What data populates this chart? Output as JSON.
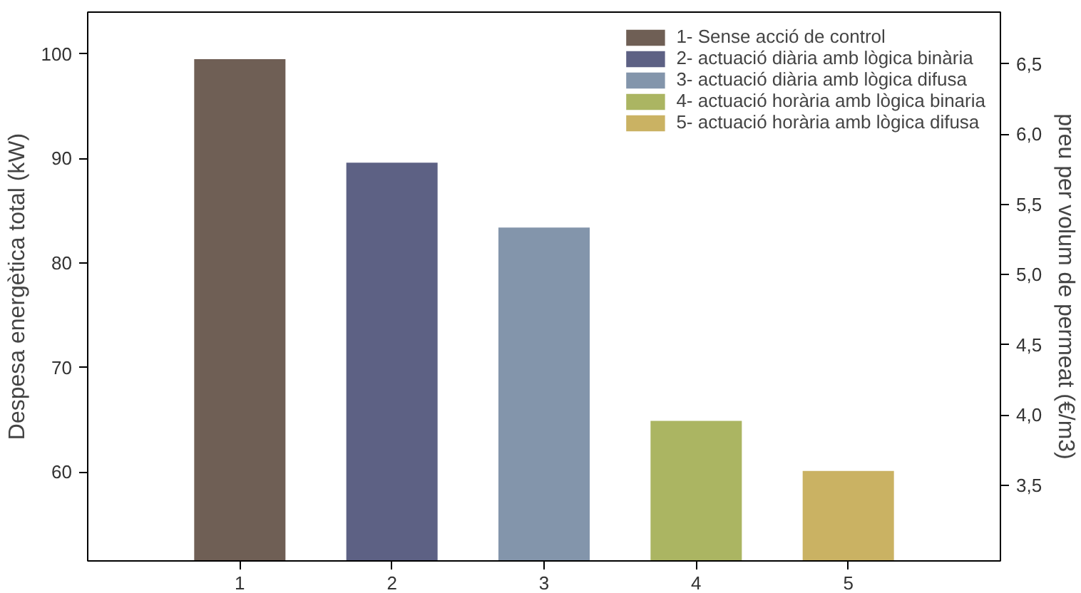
{
  "chart_data": {
    "type": "bar",
    "xlabel": null,
    "ylabel": "Despesa energètica total (kW)",
    "y2label": "preu per volum de permeat (€/m3)",
    "categories": [
      "1",
      "2",
      "3",
      "4",
      "5"
    ],
    "series": [
      {
        "name": "1- Sense acció de control",
        "color": "#6f5f55",
        "values": [
          99.5,
          null,
          null,
          null,
          null
        ]
      },
      {
        "name": "2- actuació diària amb lògica binària",
        "color": "#5d6184",
        "values": [
          null,
          89.6,
          null,
          null,
          null
        ]
      },
      {
        "name": "3- actuació diària amb lògica difusa",
        "color": "#8395ab",
        "values": [
          null,
          null,
          83.4,
          null,
          null
        ]
      },
      {
        "name": "4- actuació horària amb lògica binaria",
        "color": "#abb562",
        "values": [
          null,
          null,
          null,
          64.9,
          null
        ]
      },
      {
        "name": "5- actuació horària amb lògica difusa",
        "color": "#cab263",
        "values": [
          null,
          null,
          null,
          null,
          60.1
        ]
      }
    ],
    "ylim": [
      51.5,
      104
    ],
    "yticks": [
      60,
      70,
      80,
      90,
      100
    ],
    "y2lim": [
      2.96,
      6.87
    ],
    "y2ticks": [
      {
        "value": 3.5,
        "label": "3,5"
      },
      {
        "value": 4.0,
        "label": "4,0"
      },
      {
        "value": 4.5,
        "label": "4,5"
      },
      {
        "value": 5.0,
        "label": "5,0"
      },
      {
        "value": 5.5,
        "label": "5,5"
      },
      {
        "value": 6.0,
        "label": "6,0"
      },
      {
        "value": 6.5,
        "label": "6,5"
      }
    ],
    "grid": false,
    "legend": "top right"
  }
}
